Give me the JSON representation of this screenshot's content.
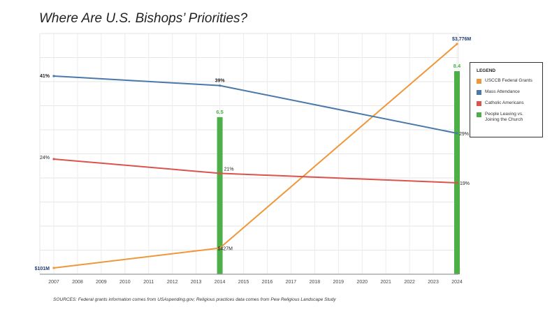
{
  "title": "Where Are U.S. Bishops’ Priorities?",
  "sources": "SOURCES: Federal grants information comes from USAspending.gov; Religious practices data comes from Pew Religious Landscape Study",
  "legend": {
    "title": "LEGEND",
    "items": [
      {
        "label": "USCCB Federal Grants",
        "color": "#f0963a"
      },
      {
        "label": "Mass Attendance",
        "color": "#4a78a8"
      },
      {
        "label": "Catholic Americans",
        "color": "#d9534f"
      },
      {
        "label": "People Leaving vs. Joining the Church",
        "color": "#4caf48"
      }
    ]
  },
  "chart_data": {
    "type": "line",
    "title": "Where Are U.S. Bishops’ Priorities?",
    "x_ticks": [
      "2007",
      "2008",
      "2009",
      "2010",
      "2011",
      "2012",
      "2013",
      "2014",
      "2015",
      "2016",
      "2017",
      "2018",
      "2019",
      "2020",
      "2021",
      "2022",
      "2023",
      "2024"
    ],
    "xlim": [
      2007,
      2024
    ],
    "grid": true,
    "legend_position": "right",
    "series": [
      {
        "name": "USCCB Federal Grants",
        "color": "#f0963a",
        "unit": "$M",
        "points": [
          {
            "x": 2007,
            "y": 101,
            "label": "$101M"
          },
          {
            "x": 2014,
            "y": 427,
            "label": "$427M"
          },
          {
            "x": 2024,
            "y": 3776,
            "label": "$3,776M"
          }
        ]
      },
      {
        "name": "Mass Attendance",
        "color": "#4a78a8",
        "unit": "%",
        "points": [
          {
            "x": 2007,
            "y": 41,
            "label": "41%"
          },
          {
            "x": 2014,
            "y": 39,
            "label": "39%"
          },
          {
            "x": 2024,
            "y": 29,
            "label": "29%"
          }
        ]
      },
      {
        "name": "Catholic Americans",
        "color": "#d9534f",
        "unit": "%",
        "points": [
          {
            "x": 2007,
            "y": 24,
            "label": "24%"
          },
          {
            "x": 2014,
            "y": 21,
            "label": "21%"
          },
          {
            "x": 2024,
            "y": 19,
            "label": "19%"
          }
        ]
      },
      {
        "name": "People Leaving vs. Joining the Church",
        "color": "#4caf48",
        "type": "bar",
        "points": [
          {
            "x": 2014,
            "y": 6.5,
            "label": "6.5"
          },
          {
            "x": 2024,
            "y": 8.4,
            "label": "8.4"
          }
        ]
      }
    ]
  }
}
